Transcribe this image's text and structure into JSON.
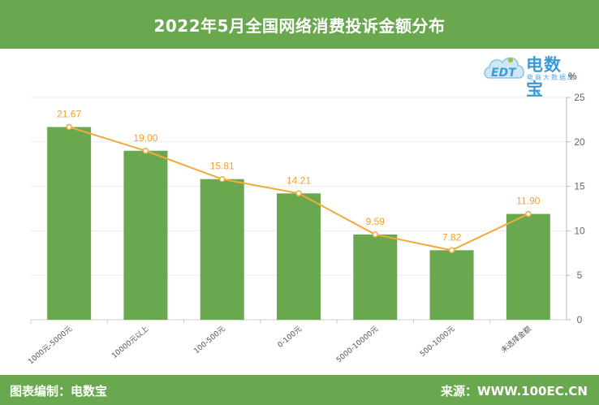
{
  "header": {
    "title": "2022年5月全国网络消费投诉金额分布"
  },
  "logo": {
    "main": "电数宝",
    "sub": "电商大数据库",
    "badge": "EDT"
  },
  "footer": {
    "left": "图表编制：电数宝",
    "right": "来源：WWW.100EC.CN"
  },
  "colors": {
    "bar": "#6aa84f",
    "line": "#f5a93a",
    "label": "#f0a030",
    "header": "#6aa84f"
  },
  "chart_data": {
    "type": "bar",
    "categories": [
      "1000元-5000元",
      "10000元以上",
      "100-500元",
      "0-100元",
      "5000-10000元",
      "500-1000元",
      "未选择金额"
    ],
    "series": [
      {
        "values": [
          21.67,
          19.0,
          15.81,
          14.21,
          9.59,
          7.82,
          11.9
        ]
      }
    ],
    "overlay_line": true,
    "value_labels": [
      "21.67",
      "19.00",
      "15.81",
      "14.21",
      "9.59",
      "7.82",
      "11.90"
    ],
    "ylabel": "%",
    "ylim": [
      0,
      25
    ],
    "yticks": [
      0,
      5,
      10,
      15,
      20,
      25
    ],
    "y_axis_position": "right",
    "grid": true
  }
}
